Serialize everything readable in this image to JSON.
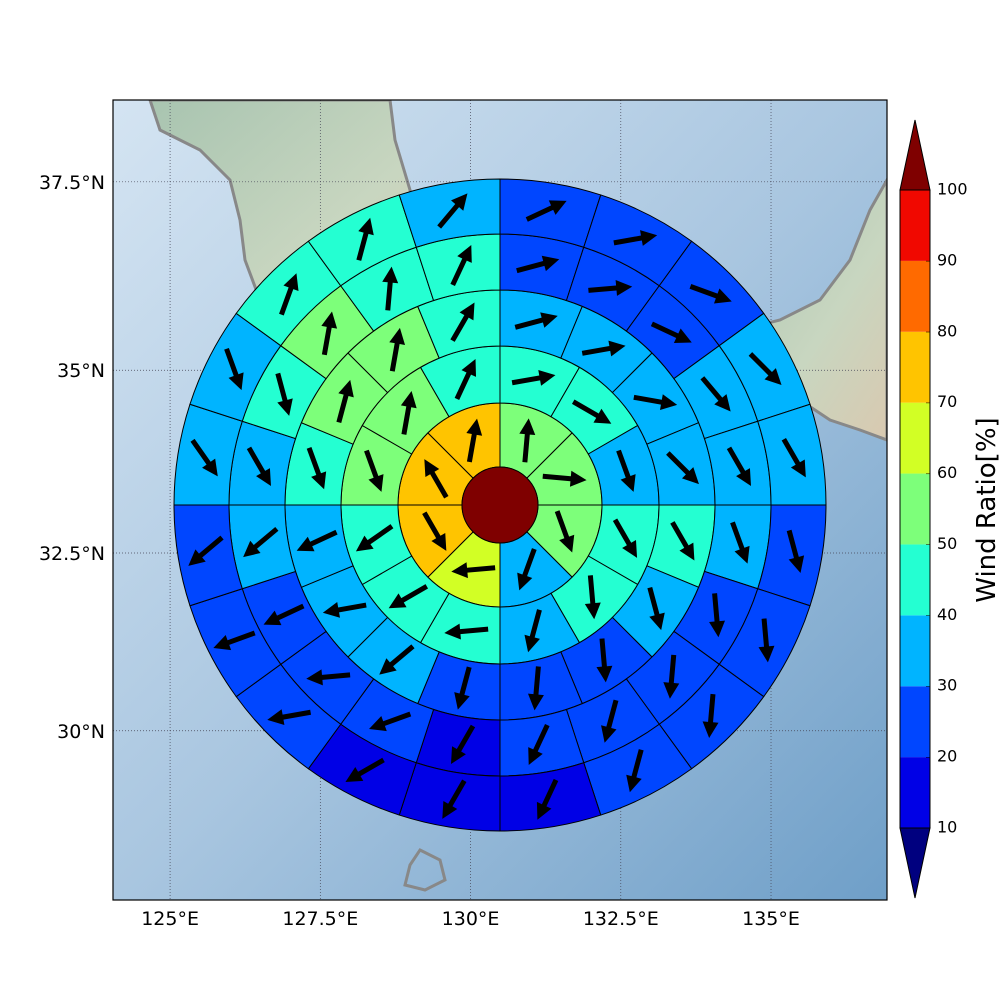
{
  "chart_data": {
    "type": "polar-sectors",
    "xlim": [
      124.05,
      136.93
    ],
    "ylim": [
      27.56,
      38.56
    ],
    "xticks": [
      {
        "value": 125,
        "label": "125°E"
      },
      {
        "value": 127.5,
        "label": "127.5°E"
      },
      {
        "value": 130,
        "label": "130°E"
      },
      {
        "value": 132.5,
        "label": "132.5°E"
      },
      {
        "value": 135,
        "label": "135°E"
      }
    ],
    "yticks": [
      {
        "value": 30,
        "label": "30°N"
      },
      {
        "value": 32.5,
        "label": "32.5°N"
      },
      {
        "value": 35,
        "label": "35°N"
      },
      {
        "value": 37.5,
        "label": "37.5°N"
      }
    ],
    "grid": true,
    "colorbar": {
      "label": "Wind Ratio[%]",
      "ticks": [
        10,
        20,
        30,
        40,
        50,
        60,
        70,
        80,
        90,
        100
      ],
      "colors": [
        "#00007f",
        "#0000e6",
        "#0046ff",
        "#00b4ff",
        "#24ffd2",
        "#7dff7a",
        "#d2ff25",
        "#ffc400",
        "#ff6a00",
        "#f10800",
        "#7f0000"
      ]
    },
    "center": {
      "value": 105
    },
    "rings": [
      {
        "values": [
          55,
          55,
          55,
          35,
          65,
          75,
          75,
          75
        ],
        "directions": [
          5,
          95,
          160,
          200,
          265,
          150,
          330,
          10
        ]
      },
      {
        "values": [
          45,
          45,
          35,
          45,
          45,
          35,
          45,
          45,
          45,
          55,
          55,
          45
        ],
        "directions": [
          80,
          120,
          160,
          150,
          175,
          195,
          265,
          240,
          235,
          160,
          10,
          25
        ]
      },
      {
        "values": [
          35,
          35,
          35,
          35,
          45,
          35,
          25,
          25,
          25,
          35,
          35,
          35,
          45,
          55,
          55,
          45
        ],
        "directions": [
          75,
          80,
          100,
          135,
          150,
          165,
          175,
          185,
          195,
          230,
          260,
          245,
          160,
          15,
          10,
          30
        ]
      },
      {
        "values": [
          25,
          25,
          25,
          35,
          35,
          35,
          25,
          25,
          25,
          25,
          15,
          25,
          25,
          25,
          35,
          35,
          45,
          55,
          45,
          45
        ],
        "directions": [
          75,
          85,
          115,
          140,
          150,
          160,
          175,
          185,
          195,
          205,
          210,
          250,
          265,
          245,
          230,
          150,
          165,
          10,
          5,
          25
        ]
      },
      {
        "values": [
          25,
          25,
          25,
          35,
          35,
          25,
          25,
          25,
          25,
          15,
          15,
          15,
          25,
          25,
          25,
          35,
          35,
          45,
          45,
          35
        ],
        "directions": [
          65,
          80,
          110,
          135,
          150,
          165,
          175,
          185,
          195,
          205,
          210,
          240,
          260,
          250,
          230,
          145,
          160,
          20,
          15,
          40
        ]
      }
    ]
  }
}
